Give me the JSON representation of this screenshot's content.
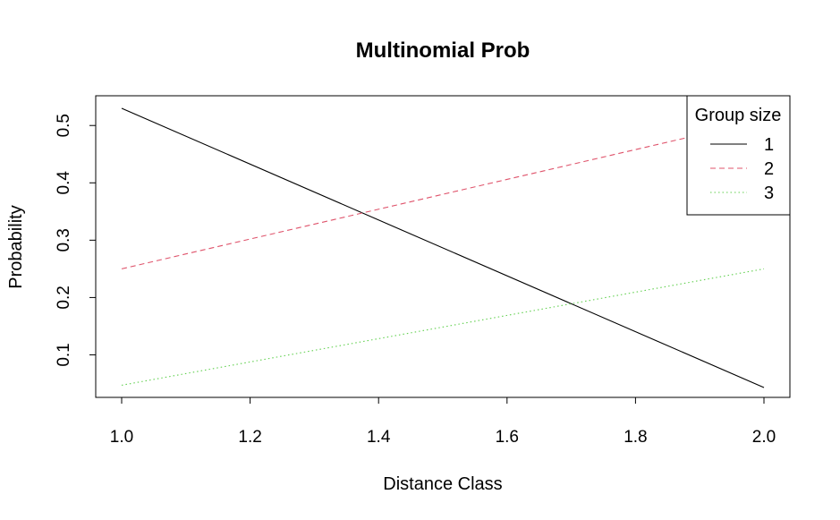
{
  "chart_data": {
    "type": "line",
    "title": "Multinomial Prob",
    "xlabel": "Distance Class",
    "ylabel": "Probability",
    "xlim": [
      1.0,
      2.0
    ],
    "ylim": [
      0.043,
      0.53
    ],
    "x_ticks": [
      "1.0",
      "1.2",
      "1.4",
      "1.6",
      "1.8",
      "2.0"
    ],
    "x_tick_values": [
      1.0,
      1.2,
      1.4,
      1.6,
      1.8,
      2.0
    ],
    "y_ticks": [
      "0.1",
      "0.2",
      "0.3",
      "0.4",
      "0.5"
    ],
    "y_tick_values": [
      0.1,
      0.2,
      0.3,
      0.4,
      0.5
    ],
    "grid": false,
    "legend": {
      "title": "Group size",
      "placement": "top-right"
    },
    "series": [
      {
        "name": "1",
        "color": "#000000",
        "dash": "solid",
        "x": [
          1.0,
          2.0
        ],
        "y": [
          0.53,
          0.043
        ]
      },
      {
        "name": "2",
        "color": "#DF536B",
        "dash": "dashed",
        "x": [
          1.0,
          2.0
        ],
        "y": [
          0.25,
          0.51
        ]
      },
      {
        "name": "3",
        "color": "#61D04F",
        "dash": "dotted",
        "x": [
          1.0,
          2.0
        ],
        "y": [
          0.047,
          0.25
        ]
      }
    ]
  }
}
